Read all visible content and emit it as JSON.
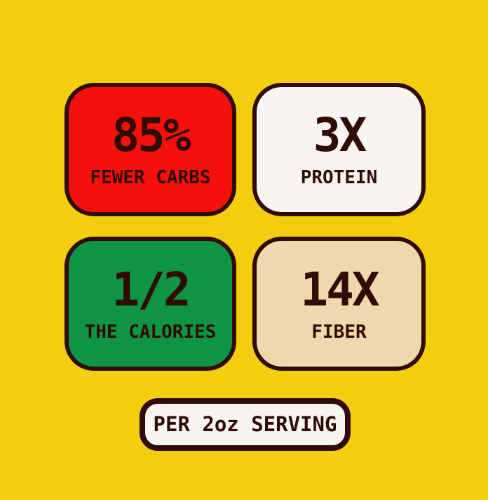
{
  "page": {
    "background": "#F2CE0E",
    "ink": "#310C06"
  },
  "stats": [
    {
      "value": "85%",
      "label": "FEWER CARBS",
      "bg": "#F5100C"
    },
    {
      "value": "3X",
      "label": "PROTEIN",
      "bg": "#F8F4F1"
    },
    {
      "value": "1/2",
      "label": "THE CALORIES",
      "bg": "#0E9445"
    },
    {
      "value": "14X",
      "label": "FIBER",
      "bg": "#EFD9AC"
    }
  ],
  "footer": {
    "label": "PER 2oz SERVING",
    "bg": "#F8F4F1"
  }
}
